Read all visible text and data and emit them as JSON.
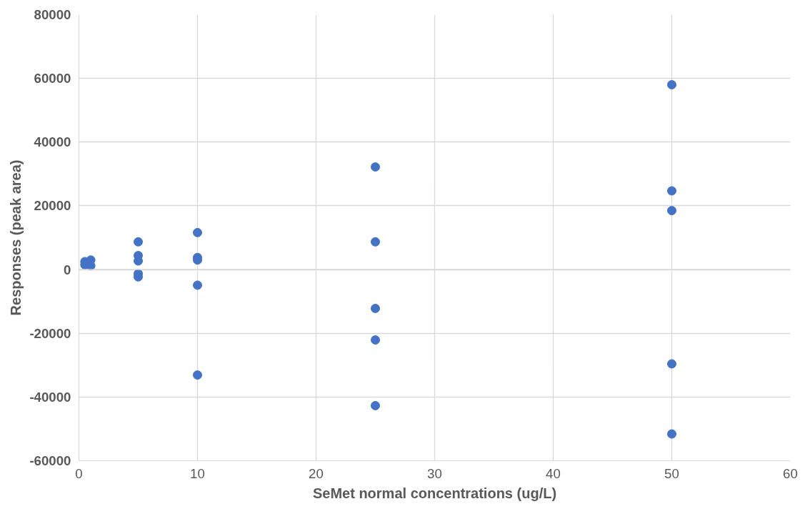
{
  "chart_data": {
    "type": "scatter",
    "xlabel": "SeMet normal concentrations (ug/L)",
    "ylabel": "Responses (peak area)",
    "xlim": [
      0,
      60
    ],
    "xticks": [
      0,
      10,
      20,
      30,
      40,
      50,
      60
    ],
    "ylim": [
      -60000,
      80000
    ],
    "yticks": [
      -60000,
      -40000,
      -20000,
      0,
      20000,
      40000,
      60000,
      80000
    ],
    "grid": true,
    "marker": "circle",
    "series": [
      {
        "color": "#4472c4",
        "x": [
          0.5,
          0.5,
          1,
          1,
          5,
          5,
          5,
          5,
          5,
          10,
          10,
          10,
          10,
          10,
          25,
          25,
          25,
          25,
          25,
          50,
          50,
          50,
          50,
          50
        ],
        "values": [
          2500,
          1500,
          3000,
          1200,
          8700,
          4400,
          2700,
          -1300,
          -2300,
          11600,
          3800,
          3000,
          -4900,
          -33100,
          32200,
          8700,
          -12200,
          -22100,
          -42700,
          58000,
          24700,
          18500,
          -29600,
          -51600
        ]
      }
    ]
  }
}
